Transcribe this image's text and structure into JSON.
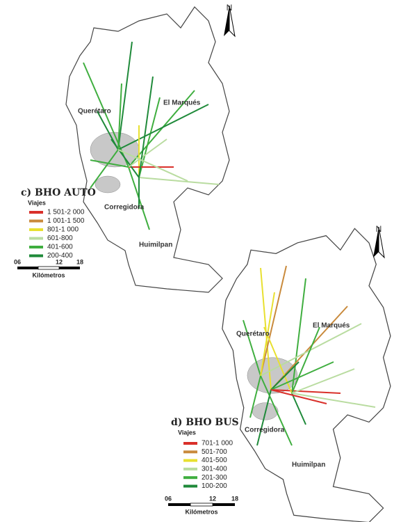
{
  "maps": [
    {
      "title": "c) BHO AUTO",
      "north": "N",
      "places": [
        "Querétaro",
        "El Marqués",
        "Corregidora",
        "Huimilpan"
      ],
      "legend": {
        "title": "Viajes",
        "items": [
          {
            "label": "1 501-2 000",
            "color": "#d9302a"
          },
          {
            "label": "1 001-1 500",
            "color": "#c98a3c"
          },
          {
            "label": "801-1 000",
            "color": "#e8e030"
          },
          {
            "label": "601-800",
            "color": "#b9dca0"
          },
          {
            "label": "401-600",
            "color": "#3fae3f"
          },
          {
            "label": "200-400",
            "color": "#1f8a3a"
          }
        ]
      },
      "scale": {
        "ticks": [
          "06",
          "12",
          "18"
        ],
        "unit": "Kilómetros"
      }
    },
    {
      "title": "d) BHO BUS",
      "north": "N",
      "places": [
        "Querétaro",
        "El Marqués",
        "Corregidora",
        "Huimilpan"
      ],
      "legend": {
        "title": "Viajes",
        "items": [
          {
            "label": "701-1 000",
            "color": "#d9302a"
          },
          {
            "label": "501-700",
            "color": "#c98a3c"
          },
          {
            "label": "401-500",
            "color": "#e8e030"
          },
          {
            "label": "301-400",
            "color": "#b9dca0"
          },
          {
            "label": "201-300",
            "color": "#3fae3f"
          },
          {
            "label": "100-200",
            "color": "#1f8a3a"
          }
        ]
      },
      "scale": {
        "ticks": [
          "06",
          "12",
          "18"
        ],
        "unit": "Kilómetros"
      }
    }
  ]
}
